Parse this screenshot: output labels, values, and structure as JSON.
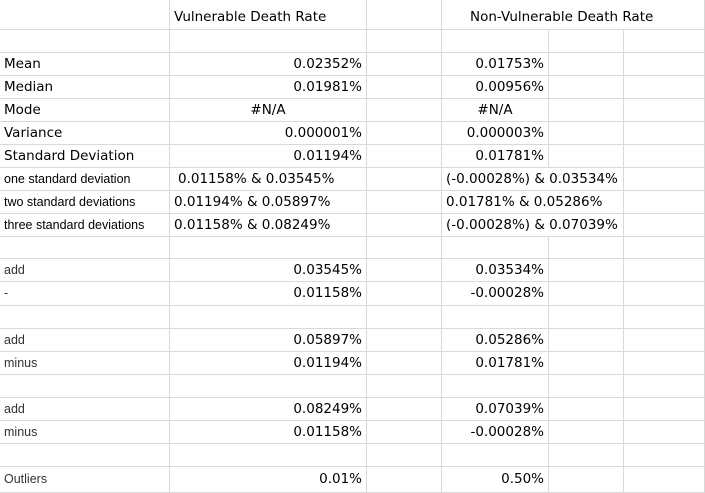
{
  "header": {
    "vulnerable": "Vulnerable Death Rate",
    "non_vulnerable": "Non-Vulnerable Death Rate"
  },
  "stats": {
    "mean": {
      "label": "Mean",
      "v": "0.02352%",
      "nv": "0.01753%"
    },
    "median": {
      "label": "Median",
      "v": "0.01981%",
      "nv": "0.00956%"
    },
    "mode": {
      "label": "Mode",
      "v": "#N/A",
      "nv": "#N/A"
    },
    "variance": {
      "label": "Variance",
      "v": "0.000001%",
      "nv": "0.000003%"
    },
    "sd": {
      "label": "Standard Deviation",
      "v": "0.01194%",
      "nv": "0.01781%"
    },
    "one_sd": {
      "label": "one standard deviation",
      "v": "0.01158% & 0.03545%",
      "nv": "(-0.00028%) & 0.03534%"
    },
    "two_sd": {
      "label": "two standard deviations",
      "v": "0.01194% & 0.05897%",
      "nv": "0.01781% & 0.05286%"
    },
    "three_sd": {
      "label": "three standard deviations",
      "v": "0.01158% & 0.08249%",
      "nv": "(-0.00028%) & 0.07039%"
    }
  },
  "calc": {
    "add1": {
      "label": "add",
      "v": "0.03545%",
      "nv": "0.03534%"
    },
    "minus1": {
      "label": "-",
      "v": "0.01158%",
      "nv": "-0.00028%"
    },
    "add2": {
      "label": "add",
      "v": "0.05897%",
      "nv": "0.05286%"
    },
    "minus2": {
      "label": "minus",
      "v": "0.01194%",
      "nv": "0.01781%"
    },
    "add3": {
      "label": "add",
      "v": "0.08249%",
      "nv": "0.07039%"
    },
    "minus3": {
      "label": "minus",
      "v": "0.01158%",
      "nv": "-0.00028%"
    }
  },
  "outliers": {
    "label": "Outliers",
    "v": "0.01%",
    "nv": "0.50%"
  }
}
